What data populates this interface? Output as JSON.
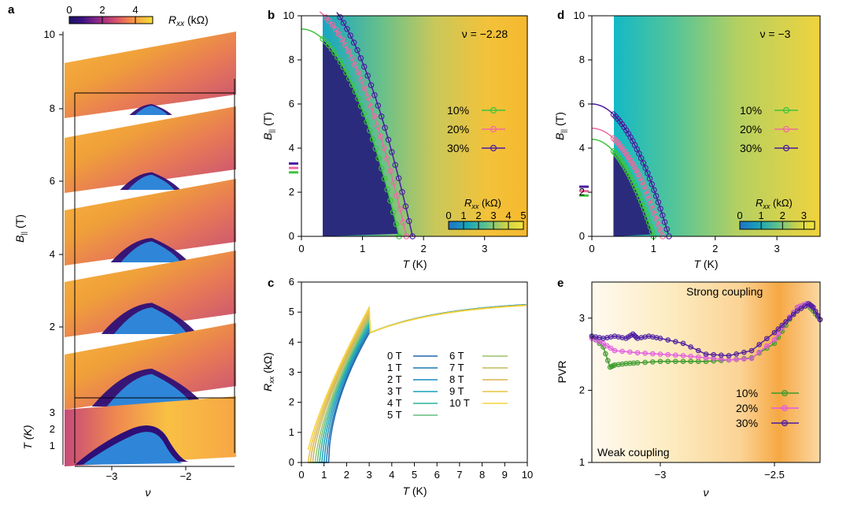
{
  "figure": {
    "panel_labels": [
      "a",
      "b",
      "c",
      "d",
      "e"
    ],
    "colors": {
      "magma": [
        "#1b1464",
        "#2e0f76",
        "#5b1a8c",
        "#8e2b86",
        "#c2407c",
        "#e8615f",
        "#f58f47",
        "#f7bb3b",
        "#f5e23a"
      ],
      "viridis_bg": [
        "#2b2b7e",
        "#1f73b5",
        "#17a3b8",
        "#5fc18e",
        "#b8cf55",
        "#f3c43a",
        "#f7bd33"
      ],
      "ten": "#3cc43c",
      "twenty": "#ef6aa1",
      "thirty": "#4a1aa0",
      "ten_e": "#3d9a2c",
      "twenty_e": "#e35be0",
      "thirty_e": "#4a1aa0"
    }
  },
  "chart_data": [
    {
      "panel": "a",
      "type": "heatmap",
      "title": "",
      "ylabel_main": "B",
      "ylabel_sub": "||",
      "ylabel_unit": " (T)",
      "y_ticks": [
        "2",
        "4",
        "6",
        "8",
        "10"
      ],
      "slice_ticks": [
        "1",
        "2",
        "3"
      ],
      "slice_axis_label": "T (K)",
      "x_ticks": [
        "−3",
        "−2"
      ],
      "xlabel": "ν",
      "colorbar": {
        "label_main": "R",
        "label_sub": "xx",
        "label_unit": " (kΩ)",
        "ticks": [
          "0",
          "2",
          "4"
        ],
        "range": [
          0,
          5
        ]
      },
      "slices_B_T": [
        10,
        8,
        6,
        4,
        2,
        0
      ]
    },
    {
      "panel": "b",
      "type": "line",
      "annotation": "ν = −2.28",
      "xlabel": "T (K)",
      "xlabel_main": "T",
      "xlabel_unit": " (K)",
      "ylabel_main": "B",
      "ylabel_sub": "||",
      "ylabel_unit": " (T)",
      "xlim": [
        0,
        3.7
      ],
      "ylim": [
        0,
        10
      ],
      "x_ticks": [
        0,
        1,
        2,
        3
      ],
      "y_ticks": [
        0,
        2,
        4,
        6,
        8,
        10
      ],
      "colorbar": {
        "label_main": "R",
        "label_sub": "xx",
        "label_unit": " (kΩ)",
        "ticks": [
          "0",
          "1",
          "2",
          "3",
          "4",
          "5"
        ],
        "range": [
          0,
          5
        ]
      },
      "series": [
        {
          "name": "10%",
          "tc0": 1.6,
          "b0": 9.4,
          "marker_y": 2.9
        },
        {
          "name": "20%",
          "tc0": 1.72,
          "b0": 10.5,
          "marker_y": 3.1
        },
        {
          "name": "30%",
          "tc0": 1.82,
          "b0": 11.3,
          "marker_y": 3.3
        }
      ]
    },
    {
      "panel": "c",
      "type": "line",
      "xlabel_main": "T",
      "xlabel_unit": " (K)",
      "ylabel_main": "R",
      "ylabel_sub": "xx",
      "ylabel_unit": " (kΩ)",
      "xlim": [
        0,
        10
      ],
      "ylim": [
        0,
        6
      ],
      "x_ticks": [
        0,
        1,
        2,
        3,
        4,
        5,
        6,
        7,
        8,
        9,
        10
      ],
      "y_ticks": [
        0,
        1,
        2,
        3,
        4,
        5,
        6
      ],
      "legend_col1": [
        "0 T",
        "1 T",
        "2 T",
        "3 T",
        "4 T",
        "5 T"
      ],
      "legend_col2": [
        "6 T",
        "7 T",
        "8 T",
        "9 T",
        "10 T"
      ],
      "field_values_T": [
        0,
        1,
        2,
        3,
        4,
        5,
        6,
        7,
        8,
        9,
        10
      ],
      "tc_onset_K": [
        1.2,
        1.12,
        1.02,
        0.92,
        0.82,
        0.72,
        0.62,
        0.5,
        0.4,
        0.3,
        0.2
      ],
      "high_T_value_kOhm": 5.4,
      "crossing_point": {
        "T": 3.0,
        "R": 4.3
      }
    },
    {
      "panel": "d",
      "type": "line",
      "annotation": "ν = −3",
      "xlabel_main": "T",
      "xlabel_unit": " (K)",
      "ylabel_main": "B",
      "ylabel_sub": "||",
      "ylabel_unit": " (T)",
      "xlim": [
        0,
        3.7
      ],
      "ylim": [
        0,
        10
      ],
      "x_ticks": [
        0,
        1,
        2,
        3
      ],
      "y_ticks": [
        0,
        2,
        4,
        6,
        8,
        10
      ],
      "colorbar": {
        "label_main": "R",
        "label_sub": "xx",
        "label_unit": " (kΩ)",
        "ticks": [
          "0",
          "1",
          "2",
          "3"
        ],
        "range": [
          0,
          3.5
        ]
      },
      "series": [
        {
          "name": "10%",
          "tc0": 1.0,
          "b0": 4.4,
          "marker_y": 1.85
        },
        {
          "name": "20%",
          "tc0": 1.15,
          "b0": 4.9,
          "marker_y": 2.05
        },
        {
          "name": "30%",
          "tc0": 1.25,
          "b0": 6.0,
          "marker_y": 2.25
        }
      ]
    },
    {
      "panel": "e",
      "type": "line",
      "xlabel": "ν",
      "ylabel": "PVR",
      "xlim": [
        -3.3,
        -2.3
      ],
      "ylim": [
        1,
        3.5
      ],
      "x_ticks": [
        -3,
        -2.5
      ],
      "x_tick_labels": [
        "−3",
        "−2.5"
      ],
      "y_ticks": [
        1,
        2,
        3
      ],
      "annotations": [
        "Strong coupling",
        "Weak coupling"
      ],
      "series": [
        {
          "name": "10%",
          "x": [
            -3.3,
            -3.25,
            -3.22,
            -3.2,
            -3.15,
            -3.1,
            -3.0,
            -2.9,
            -2.8,
            -2.7,
            -2.6,
            -2.5,
            -2.45,
            -2.4,
            -2.36,
            -2.33,
            -2.3
          ],
          "y": [
            2.75,
            2.6,
            2.32,
            2.35,
            2.37,
            2.38,
            2.4,
            2.4,
            2.4,
            2.42,
            2.45,
            2.65,
            2.9,
            3.15,
            3.2,
            3.1,
            2.98
          ]
        },
        {
          "name": "20%",
          "x": [
            -3.3,
            -3.25,
            -3.2,
            -3.1,
            -3.0,
            -2.9,
            -2.8,
            -2.7,
            -2.6,
            -2.5,
            -2.45,
            -2.4,
            -2.36,
            -2.33,
            -2.3
          ],
          "y": [
            2.72,
            2.65,
            2.55,
            2.52,
            2.5,
            2.48,
            2.45,
            2.42,
            2.44,
            2.7,
            2.95,
            3.15,
            3.2,
            3.15,
            2.98
          ]
        },
        {
          "name": "30%",
          "x": [
            -3.3,
            -3.25,
            -3.2,
            -3.15,
            -3.12,
            -3.1,
            -3.05,
            -3.0,
            -2.9,
            -2.8,
            -2.7,
            -2.6,
            -2.5,
            -2.45,
            -2.4,
            -2.35,
            -2.33,
            -2.3
          ],
          "y": [
            2.75,
            2.72,
            2.75,
            2.72,
            2.78,
            2.72,
            2.75,
            2.72,
            2.65,
            2.5,
            2.48,
            2.55,
            2.8,
            2.95,
            3.1,
            3.2,
            3.15,
            2.98
          ]
        }
      ]
    }
  ]
}
